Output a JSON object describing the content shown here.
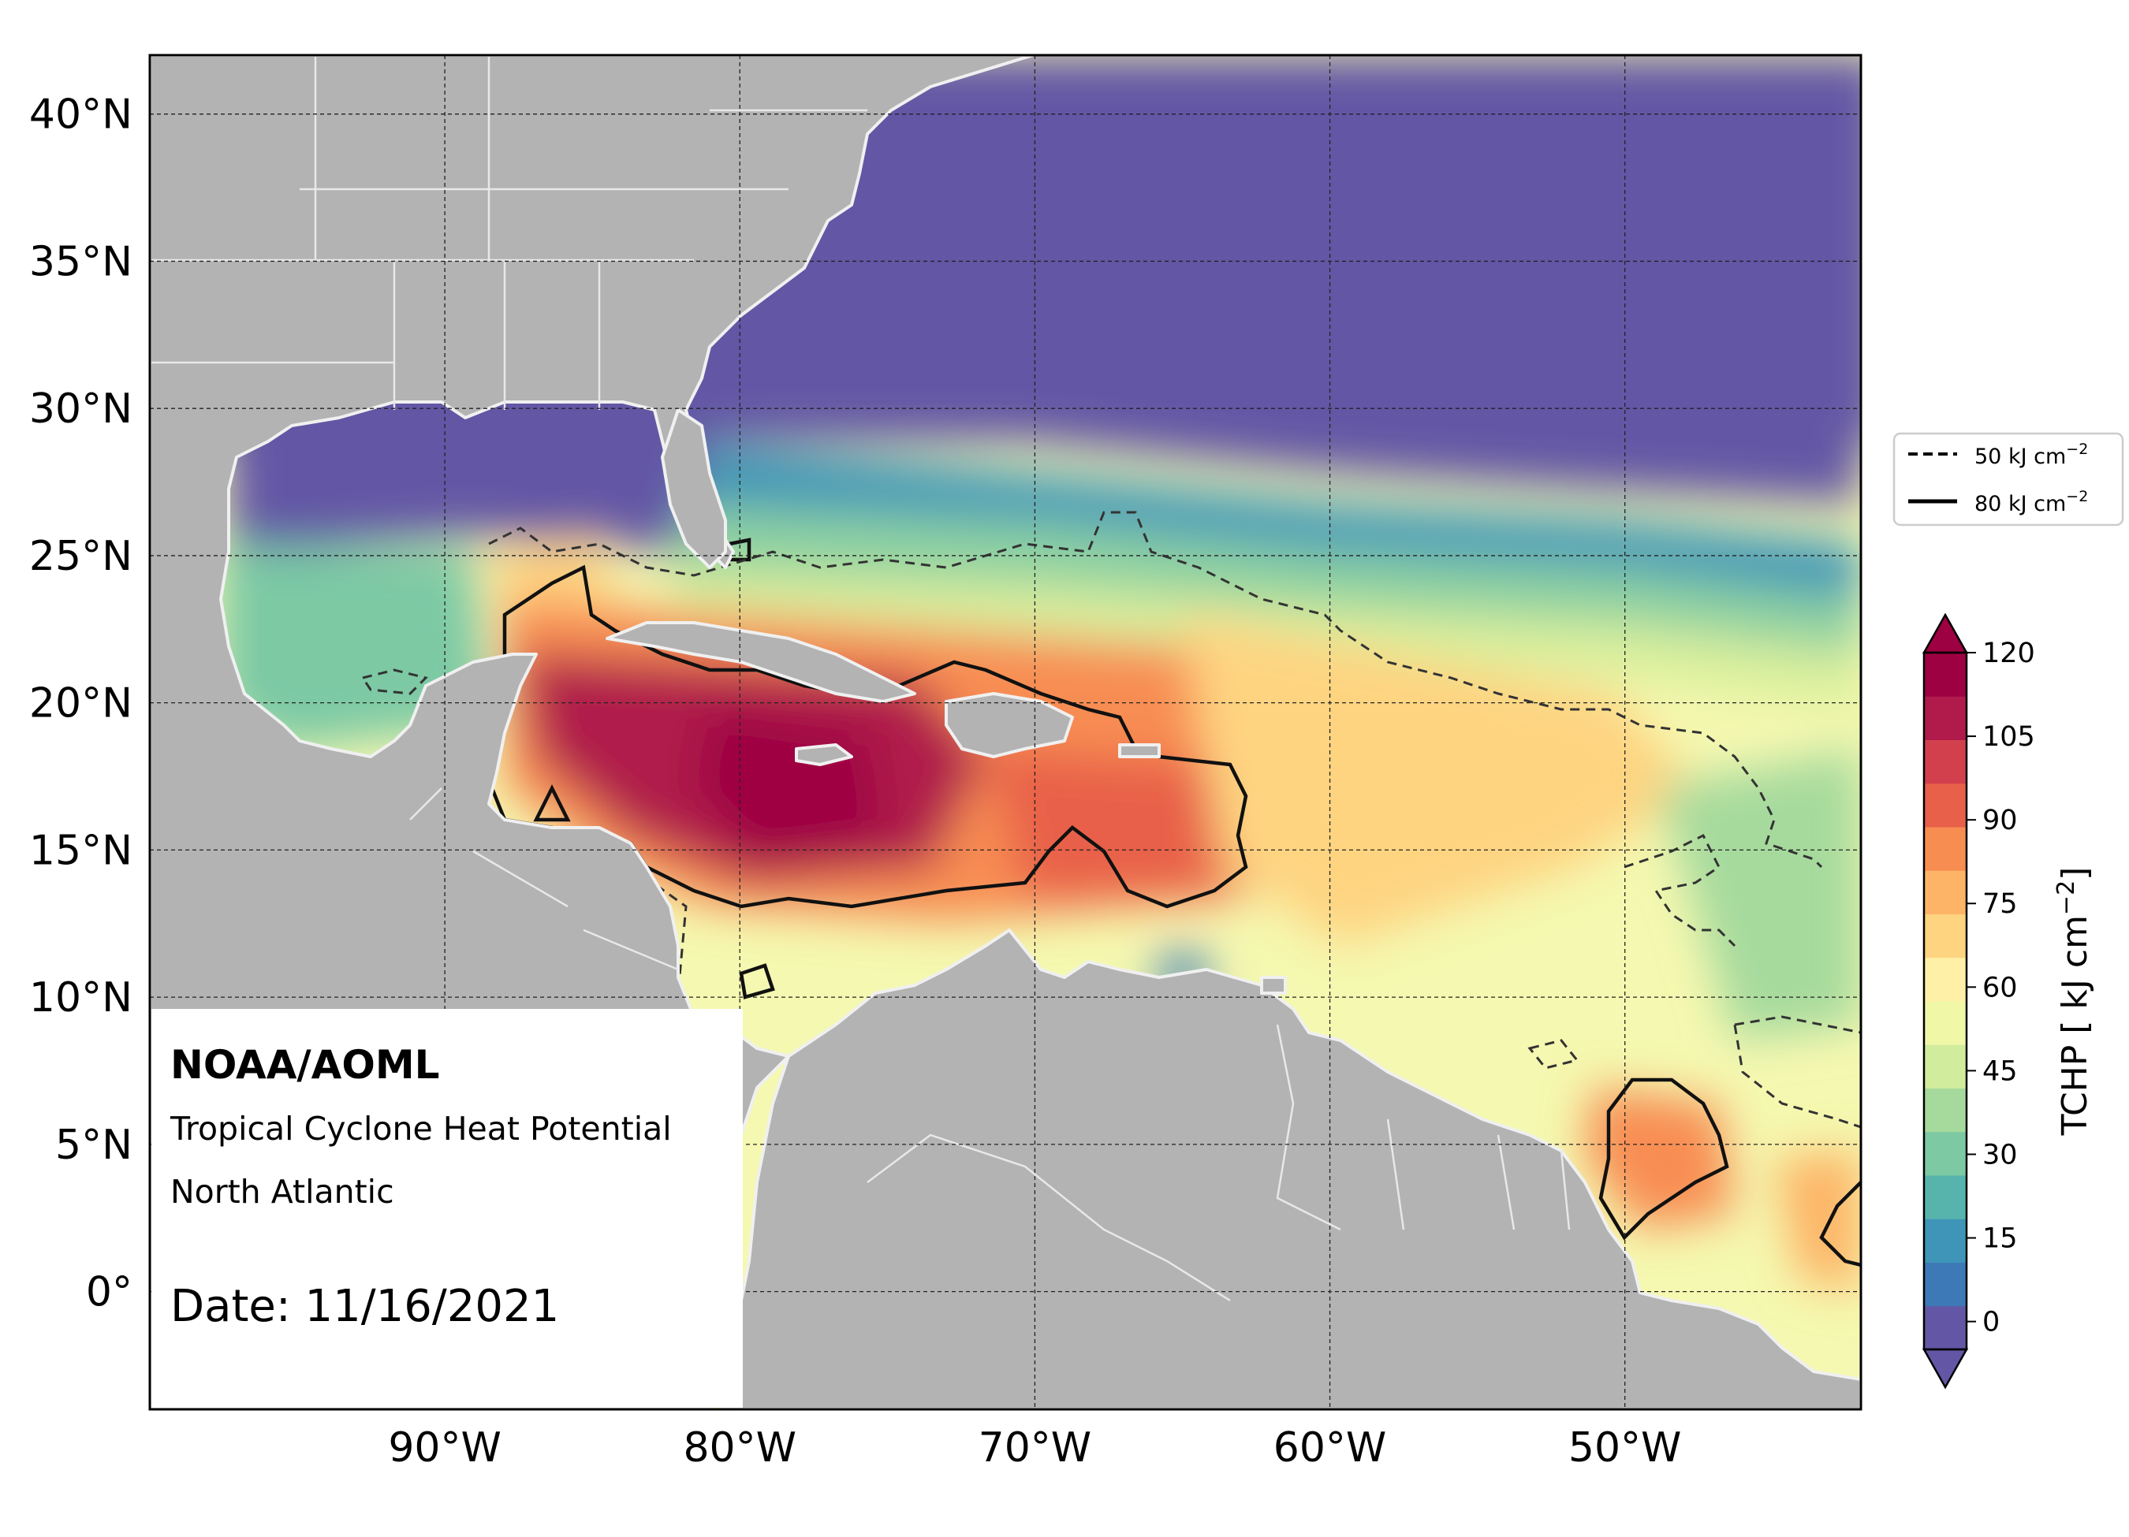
{
  "map": {
    "region": "North Atlantic",
    "lon_range": [
      -100,
      -42
    ],
    "lat_range": [
      -4,
      42
    ],
    "lat_ticks": [
      {
        "value": 40,
        "label": "40°N"
      },
      {
        "value": 35,
        "label": "35°N"
      },
      {
        "value": 30,
        "label": "30°N"
      },
      {
        "value": 25,
        "label": "25°N"
      },
      {
        "value": 20,
        "label": "20°N"
      },
      {
        "value": 15,
        "label": "15°N"
      },
      {
        "value": 10,
        "label": "10°N"
      },
      {
        "value": 5,
        "label": "5°N"
      },
      {
        "value": 0,
        "label": "0°"
      }
    ],
    "lon_ticks": [
      {
        "value": -90,
        "label": "90°W"
      },
      {
        "value": -80,
        "label": "80°W"
      },
      {
        "value": -70,
        "label": "70°W"
      },
      {
        "value": -60,
        "label": "60°W"
      },
      {
        "value": -50,
        "label": "50°W"
      }
    ],
    "land_color": "#b3b3b3",
    "coastline_color": "#f0f0f0",
    "gridlines": true
  },
  "annotation": {
    "org": "NOAA/AOML",
    "product": "Tropical Cyclone Heat Potential",
    "region": "North Atlantic",
    "date": "Date: 11/16/2021"
  },
  "legend": {
    "placement": "right of map",
    "items": [
      {
        "style": "dashed",
        "label": "50 kJ cm",
        "sup": "−2",
        "contour_value": 50
      },
      {
        "style": "solid",
        "label": "80 kJ cm",
        "sup": "−2",
        "contour_value": 80
      }
    ]
  },
  "colorbar": {
    "label": "TCHP [ kJ cm",
    "label_sup": "−2",
    "label_end": "]",
    "min": -5,
    "max": 120,
    "ticks": [
      "120",
      "105",
      "90",
      "75",
      "60",
      "45",
      "30",
      "15",
      "0"
    ],
    "extend": "both",
    "colors": [
      "#6357a5",
      "#3d79b7",
      "#3e95b8",
      "#57b4ac",
      "#7cc9a4",
      "#a6da9d",
      "#d1ec9c",
      "#f0f8a8",
      "#fef0a6",
      "#fed481",
      "#fdb466",
      "#f88d52",
      "#e8604a",
      "#d2404d",
      "#b01b4c",
      "#9e0142"
    ]
  },
  "chart_data": {
    "type": "heatmap",
    "variable": "TCHP",
    "units": "kJ cm−2",
    "date": "11/16/2021",
    "contours": [
      50,
      80
    ],
    "regions_approx": [
      {
        "area": "North Atlantic north of 28°N",
        "tchp": 0
      },
      {
        "area": "Northern Gulf of Mexico",
        "tchp": 0
      },
      {
        "area": "Western Caribbean Sea",
        "tchp": 115
      },
      {
        "area": "Central Caribbean Sea",
        "tchp": 120
      },
      {
        "area": "Eastern Caribbean Sea",
        "tchp": 90
      },
      {
        "area": "Yucatan Channel",
        "tchp": 100
      },
      {
        "area": "Tropical Atlantic 10–20°N",
        "tchp": 60
      },
      {
        "area": "Off NE South America 2–6°N, 47–52°W",
        "tchp": 85
      },
      {
        "area": "Subtropical band 24–28°N",
        "tchp": 25
      }
    ]
  }
}
